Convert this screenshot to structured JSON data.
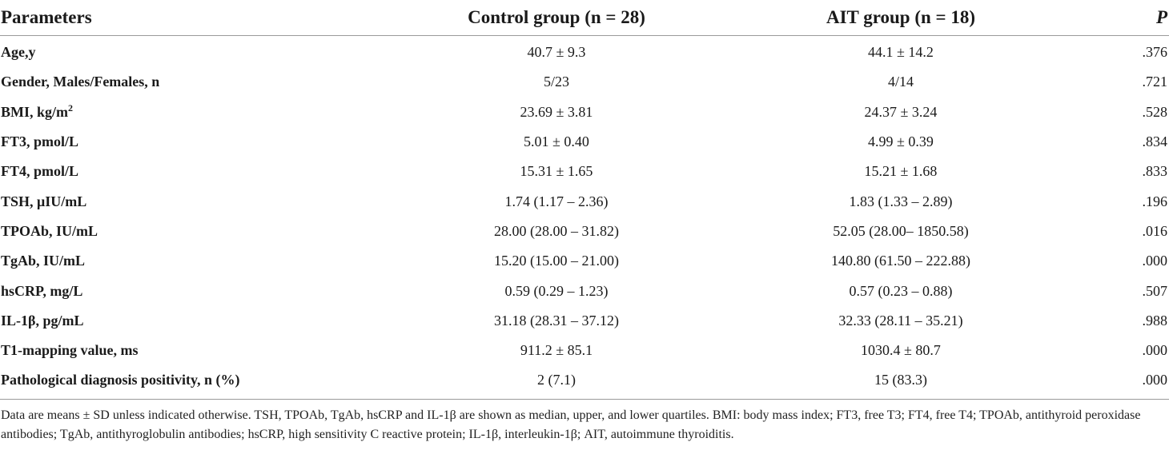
{
  "table": {
    "headers": {
      "parameters": "Parameters",
      "control": "Control group (n = 28)",
      "ait": "AIT group (n = 18)",
      "p": "P"
    },
    "rows": [
      {
        "param": "Age,y",
        "control": "40.7 ± 9.3",
        "ait": "44.1 ± 14.2",
        "p": ".376"
      },
      {
        "param": "Gender, Males/Females, n",
        "control": "5/23",
        "ait": "4/14",
        "p": ".721"
      },
      {
        "param": "BMI, kg/m",
        "param_sup": "2",
        "control": "23.69 ± 3.81",
        "ait": "24.37 ± 3.24",
        "p": ".528"
      },
      {
        "param": "FT3, pmol/L",
        "control": "5.01 ± 0.40",
        "ait": "4.99 ± 0.39",
        "p": ".834"
      },
      {
        "param": "FT4, pmol/L",
        "control": "15.31 ± 1.65",
        "ait": "15.21 ± 1.68",
        "p": ".833"
      },
      {
        "param": "TSH, μIU/mL",
        "control": "1.74 (1.17 – 2.36)",
        "ait": "1.83 (1.33 – 2.89)",
        "p": ".196"
      },
      {
        "param": "TPOAb, IU/mL",
        "control": "28.00 (28.00 – 31.82)",
        "ait": "52.05 (28.00– 1850.58)",
        "p": ".016"
      },
      {
        "param": "TgAb, IU/mL",
        "control": "15.20 (15.00 – 21.00)",
        "ait": "140.80 (61.50 – 222.88)",
        "p": ".000"
      },
      {
        "param": "hsCRP, mg/L",
        "control": "0.59 (0.29 – 1.23)",
        "ait": "0.57 (0.23 – 0.88)",
        "p": ".507"
      },
      {
        "param": "IL-1β, pg/mL",
        "control": "31.18 (28.31 – 37.12)",
        "ait": "32.33 (28.11 – 35.21)",
        "p": ".988"
      },
      {
        "param": "T1-mapping value, ms",
        "control": "911.2 ± 85.1",
        "ait": "1030.4 ± 80.7",
        "p": ".000"
      },
      {
        "param": "Pathological diagnosis positivity, n (%)",
        "control": "2 (7.1)",
        "ait": "15 (83.3)",
        "p": ".000"
      }
    ]
  },
  "footnote": "Data are means ± SD unless indicated otherwise. TSH, TPOAb, TgAb, hsCRP and IL-1β are shown as median, upper, and lower quartiles. BMI: body mass index; FT3, free T3; FT4, free T4; TPOAb, antithyroid peroxidase antibodies; TgAb, antithyroglobulin antibodies; hsCRP, high sensitivity C reactive protein; IL-1β, interleukin-1β; AIT, autoimmune thyroiditis."
}
